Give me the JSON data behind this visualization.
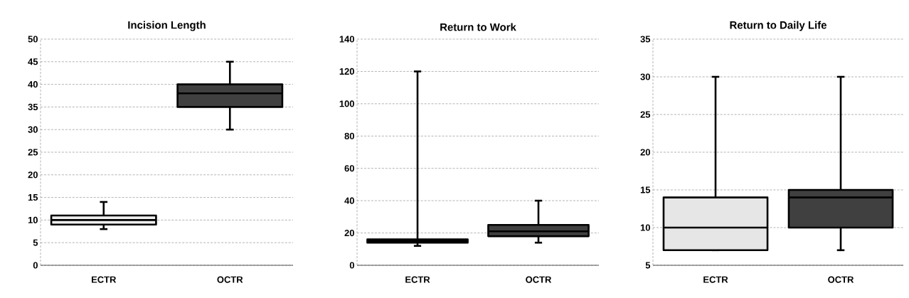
{
  "chart_data": [
    {
      "type": "box",
      "title": "Incision Length",
      "categories": [
        "ECTR",
        "OCTR"
      ],
      "boxes": [
        {
          "low": 8,
          "q1": 9,
          "median": 10,
          "q3": 11,
          "high": 14
        },
        {
          "low": 30,
          "q1": 35,
          "median": 38,
          "q3": 40,
          "high": 45
        }
      ],
      "colors": [
        "#eeeeee",
        "#404040"
      ],
      "ylim": [
        0,
        50
      ],
      "yticks": [
        0,
        5,
        10,
        15,
        20,
        25,
        30,
        35,
        40,
        45,
        50
      ],
      "grid": "y"
    },
    {
      "type": "box",
      "title": "Return to Work",
      "categories": [
        "ECTR",
        "OCTR"
      ],
      "boxes": [
        {
          "low": 12,
          "q1": 14,
          "median": 15,
          "q3": 16,
          "high": 120
        },
        {
          "low": 14,
          "q1": 18,
          "median": 21,
          "q3": 25,
          "high": 40
        }
      ],
      "colors": [
        "#eeeeee",
        "#404040"
      ],
      "ylim": [
        0,
        140
      ],
      "yticks": [
        0,
        20,
        40,
        60,
        80,
        100,
        120,
        140
      ],
      "grid": "y"
    },
    {
      "type": "box",
      "title": "Return to Daily Life",
      "categories": [
        "ECTR",
        "OCTR"
      ],
      "boxes": [
        {
          "low": 7,
          "q1": 7,
          "median": 10,
          "q3": 14,
          "high": 30
        },
        {
          "low": 7,
          "q1": 10,
          "median": 14,
          "q3": 15,
          "high": 30
        }
      ],
      "colors": [
        "#e6e6e6",
        "#404040"
      ],
      "ylim": [
        5,
        35
      ],
      "yticks": [
        5,
        10,
        15,
        20,
        25,
        30,
        35
      ],
      "grid": "y"
    }
  ]
}
